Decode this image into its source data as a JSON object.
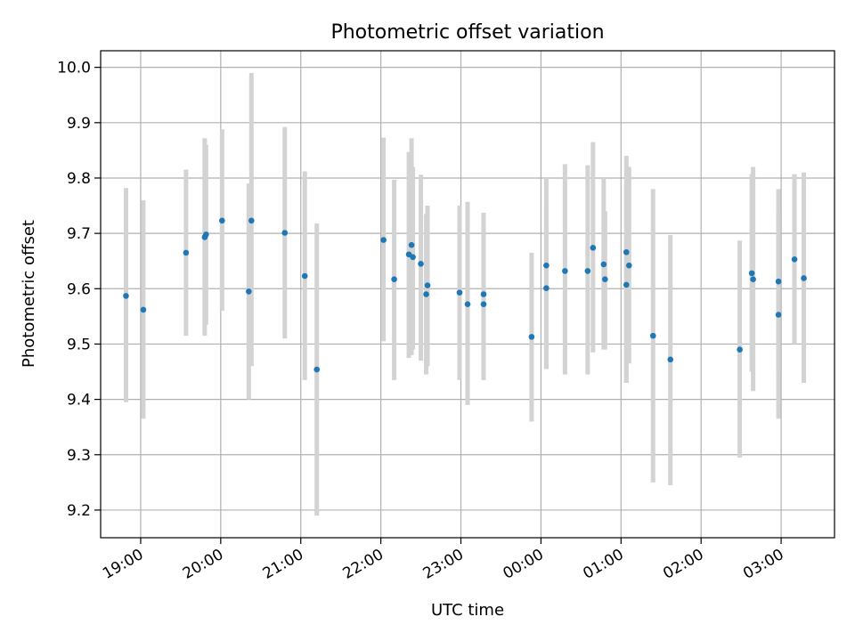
{
  "chart_data": {
    "type": "scatter",
    "title": "Photometric offset variation",
    "xlabel": "UTC time",
    "ylabel": "Photometric offset",
    "x_axis": "time (hours since 18:30 UTC shown as clock ticks)",
    "xlim": [
      "18:30",
      "03:40"
    ],
    "ylim": [
      9.15,
      10.03
    ],
    "grid": true,
    "x_ticks": [
      "19:00",
      "20:00",
      "21:00",
      "22:00",
      "23:00",
      "00:00",
      "01:00",
      "02:00",
      "03:00"
    ],
    "y_ticks": [
      "9.2",
      "9.3",
      "9.4",
      "9.5",
      "9.6",
      "9.7",
      "9.8",
      "9.9",
      "10.0"
    ],
    "colors": {
      "points": "#1f77b4",
      "error_bars": "#d3d3d3",
      "grid": "#b0b0b0"
    },
    "series": [
      {
        "x": [
          "18:49",
          "19:02",
          "19:34",
          "19:48",
          "19:49",
          "20:01",
          "20:21",
          "20:23",
          "20:48",
          "21:03",
          "21:12",
          "22:02",
          "22:10",
          "22:21",
          "22:23",
          "22:24",
          "22:30",
          "22:34",
          "22:35",
          "22:59",
          "23:05",
          "23:17",
          "23:17",
          "23:53",
          "00:04",
          "00:04",
          "00:18",
          "00:35",
          "00:39",
          "00:47",
          "00:48",
          "01:04",
          "01:04",
          "01:06",
          "01:24",
          "01:37",
          "02:29",
          "02:38",
          "02:39",
          "02:58",
          "02:58",
          "03:10",
          "03:17"
        ],
        "y": [
          9.587,
          9.562,
          9.665,
          9.693,
          9.698,
          9.723,
          9.595,
          9.723,
          9.701,
          9.623,
          9.454,
          9.688,
          9.617,
          9.662,
          9.679,
          9.657,
          9.645,
          9.59,
          9.606,
          9.593,
          9.572,
          9.59,
          9.572,
          9.513,
          9.642,
          9.601,
          9.632,
          9.632,
          9.674,
          9.644,
          9.617,
          9.666,
          9.607,
          9.642,
          9.515,
          9.472,
          9.49,
          9.628,
          9.617,
          9.553,
          9.613,
          9.653,
          9.619
        ],
        "y_low": [
          9.395,
          9.365,
          9.515,
          9.515,
          9.535,
          9.56,
          9.4,
          9.46,
          9.51,
          9.435,
          9.19,
          9.505,
          9.435,
          9.475,
          9.48,
          9.49,
          9.47,
          9.445,
          9.46,
          9.435,
          9.39,
          9.435,
          9.435,
          9.36,
          9.455,
          9.455,
          9.445,
          9.445,
          9.485,
          9.49,
          9.49,
          9.43,
          9.43,
          9.465,
          9.25,
          9.245,
          9.295,
          9.45,
          9.415,
          9.365,
          9.445,
          9.5,
          9.43
        ],
        "y_high": [
          9.782,
          9.76,
          9.815,
          9.872,
          9.86,
          9.888,
          9.79,
          9.99,
          9.892,
          9.812,
          9.718,
          9.873,
          9.797,
          9.847,
          9.872,
          9.82,
          9.806,
          9.735,
          9.75,
          9.75,
          9.757,
          9.737,
          9.737,
          9.665,
          9.8,
          9.745,
          9.825,
          9.823,
          9.865,
          9.8,
          9.74,
          9.84,
          9.79,
          9.82,
          9.78,
          9.697,
          9.687,
          9.807,
          9.82,
          9.74,
          9.78,
          9.807,
          9.81
        ]
      }
    ]
  }
}
